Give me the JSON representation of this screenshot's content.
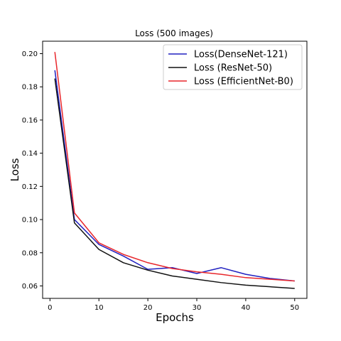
{
  "chart_data": {
    "type": "line",
    "title": "Loss (500 images)",
    "xlabel": "Epochs",
    "ylabel": "Loss",
    "xlim": [
      -1.5,
      52.5
    ],
    "ylim": [
      0.0525,
      0.2075
    ],
    "xticks": [
      0,
      10,
      20,
      30,
      40,
      50
    ],
    "yticks": [
      0.06,
      0.08,
      0.1,
      0.12,
      0.14,
      0.16,
      0.18,
      0.2
    ],
    "ytick_labels": [
      "0.06",
      "0.08",
      "0.10",
      "0.12",
      "0.14",
      "0.16",
      "0.18",
      "0.20"
    ],
    "grid": false,
    "legend_position": "top-right",
    "x": [
      1,
      5,
      10,
      15,
      20,
      25,
      30,
      35,
      40,
      45,
      50
    ],
    "series": [
      {
        "name": "Loss(DenseNet-121)",
        "color": "#2020c0",
        "values": [
          0.19,
          0.1,
          0.085,
          0.078,
          0.07,
          0.071,
          0.0675,
          0.071,
          0.067,
          0.0645,
          0.063
        ]
      },
      {
        "name": "Loss (ResNet-50)",
        "color": "#111111",
        "values": [
          0.185,
          0.098,
          0.082,
          0.074,
          0.0695,
          0.066,
          0.064,
          0.062,
          0.0605,
          0.0595,
          0.0585
        ]
      },
      {
        "name": "Loss (EfficientNet-B0)",
        "color": "#e8262b",
        "values": [
          0.201,
          0.104,
          0.086,
          0.079,
          0.074,
          0.0705,
          0.0685,
          0.067,
          0.065,
          0.064,
          0.063
        ]
      }
    ]
  }
}
